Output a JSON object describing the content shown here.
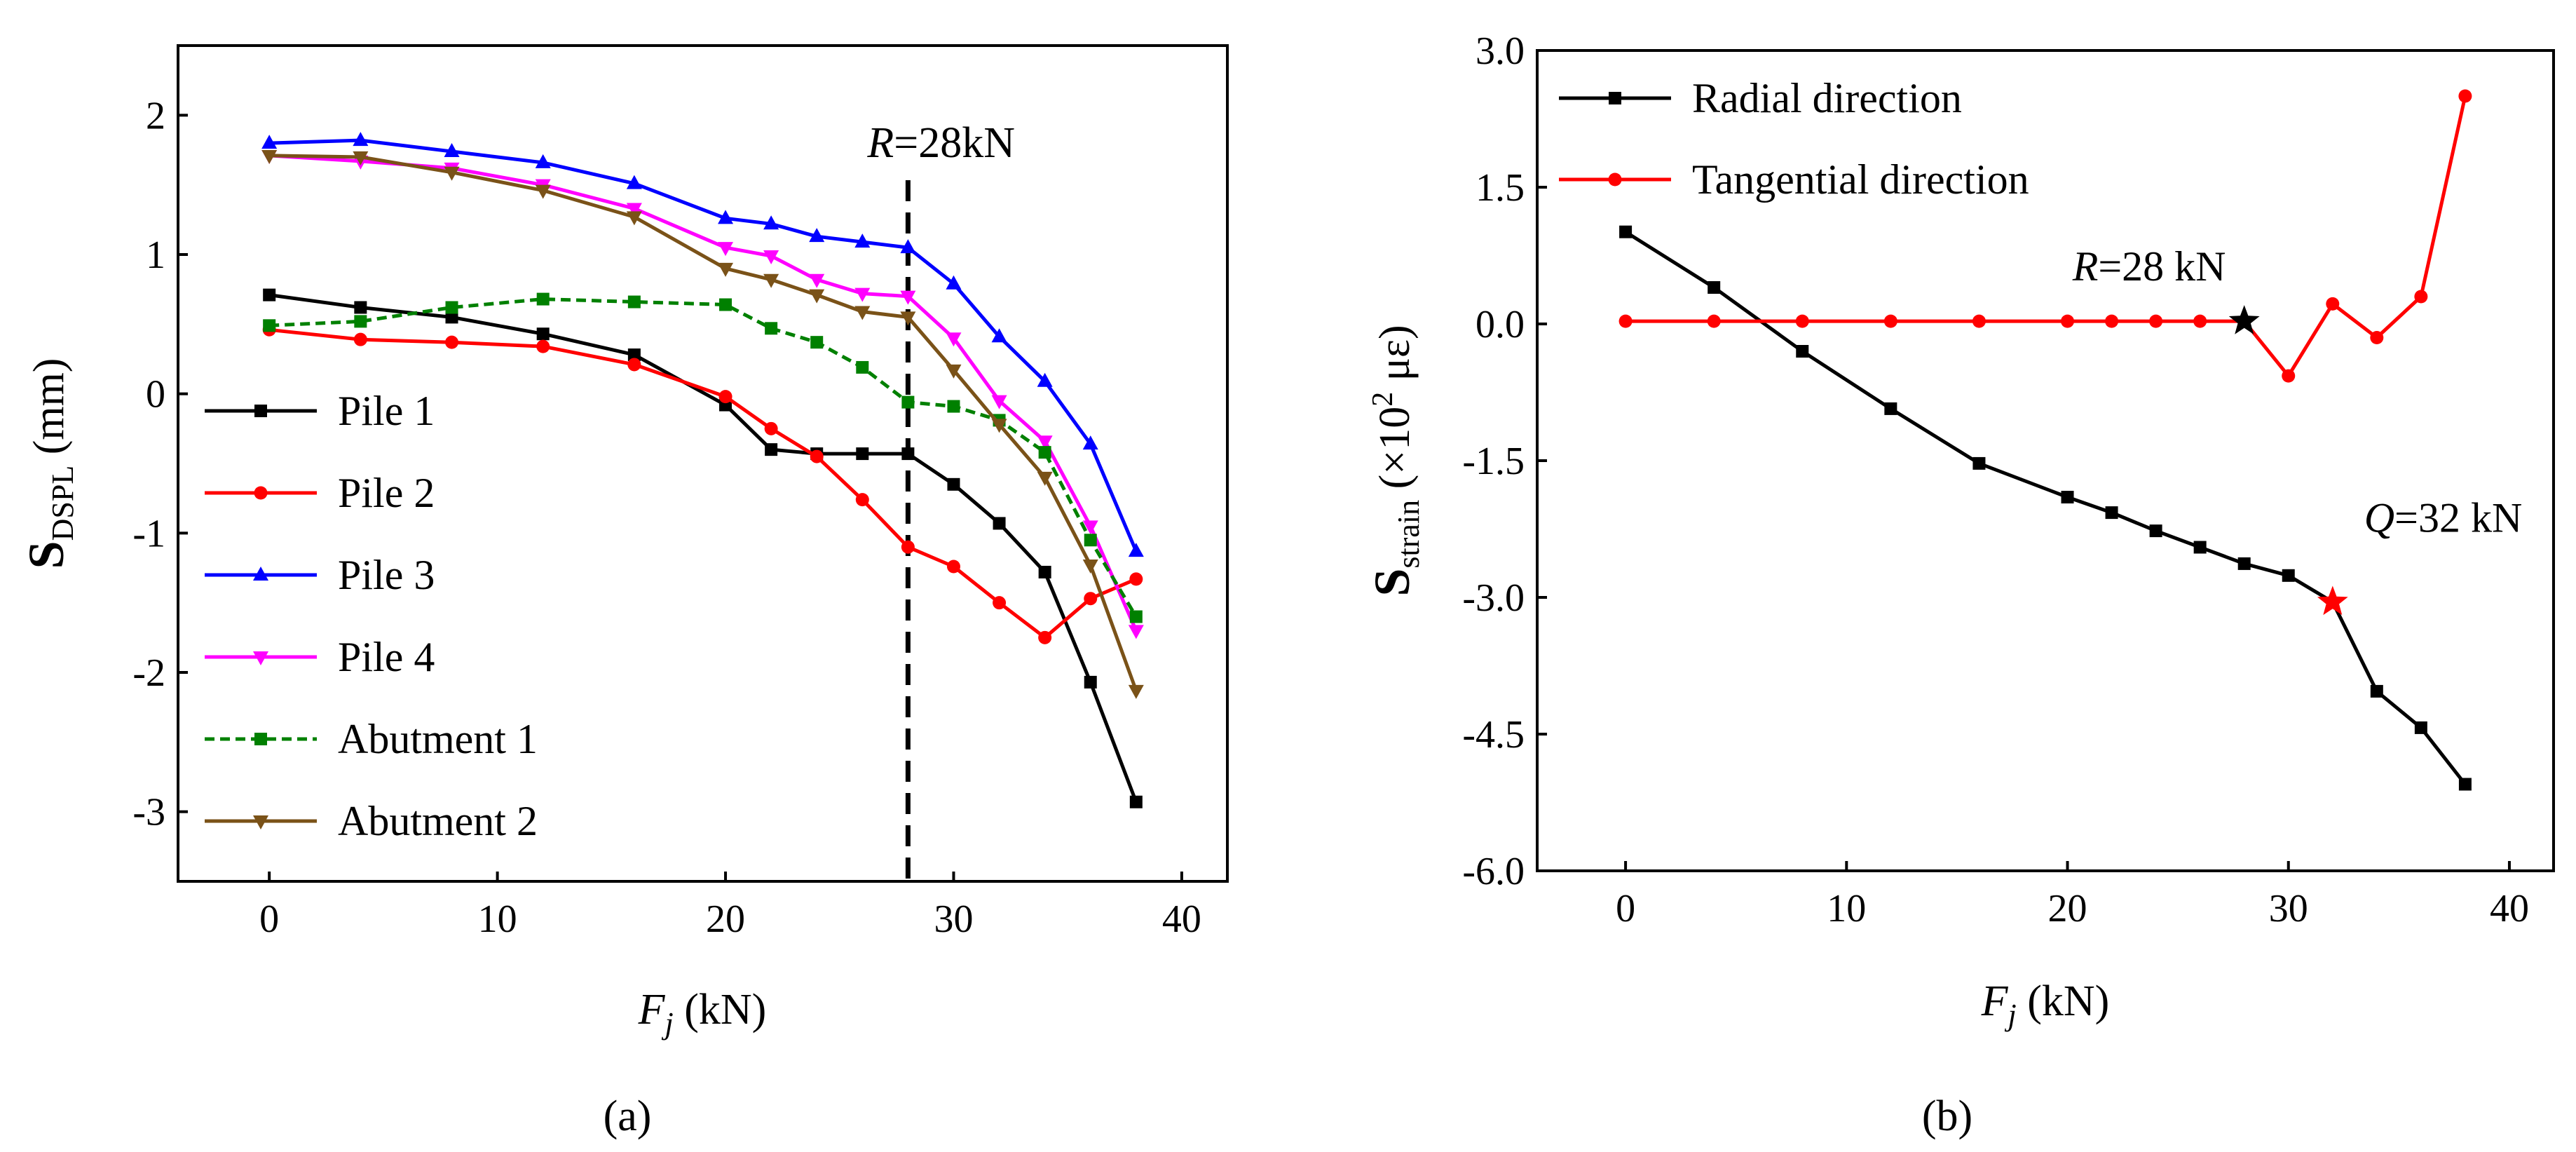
{
  "chart_data": [
    {
      "panel_label": "(a)",
      "type": "line",
      "xlabel": "F_j (kN)",
      "ylabel": "S_DSPL (mm)",
      "xlim": [
        -4,
        42
      ],
      "ylim": [
        -3.5,
        2.5
      ],
      "xticks": [
        0,
        10,
        20,
        30,
        40
      ],
      "yticks": [
        -3,
        -2,
        -1,
        0,
        1,
        2
      ],
      "ytick_labels": [
        "-3",
        "-2",
        "-1",
        "0",
        "1",
        "2"
      ],
      "grid": false,
      "legend_position": "lower-left",
      "vline": {
        "x": 28,
        "label_var": "R",
        "label_rest": "=28kN"
      },
      "series": [
        {
          "name": "Pile 1",
          "color": "#000000",
          "marker": "square",
          "dash": "",
          "x": [
            0,
            4,
            8,
            12,
            16,
            20,
            22,
            24,
            26,
            28,
            30,
            32,
            34,
            36,
            38
          ],
          "y": [
            0.71,
            0.62,
            0.55,
            0.43,
            0.28,
            -0.08,
            -0.4,
            -0.43,
            -0.43,
            -0.43,
            -0.65,
            -0.93,
            -1.28,
            -2.07,
            -2.93
          ]
        },
        {
          "name": "Pile 2",
          "color": "#ff0000",
          "marker": "circle",
          "dash": "",
          "x": [
            0,
            4,
            8,
            12,
            16,
            20,
            22,
            24,
            26,
            28,
            30,
            32,
            34,
            36,
            38
          ],
          "y": [
            0.46,
            0.39,
            0.37,
            0.34,
            0.21,
            -0.02,
            -0.25,
            -0.45,
            -0.76,
            -1.1,
            -1.24,
            -1.5,
            -1.75,
            -1.47,
            -1.33
          ]
        },
        {
          "name": "Pile 3",
          "color": "#0000ff",
          "marker": "triangle-up",
          "dash": "",
          "x": [
            0,
            4,
            8,
            12,
            16,
            20,
            22,
            24,
            26,
            28,
            30,
            32,
            34,
            36,
            38
          ],
          "y": [
            1.8,
            1.82,
            1.74,
            1.66,
            1.51,
            1.26,
            1.22,
            1.13,
            1.09,
            1.05,
            0.79,
            0.41,
            0.09,
            -0.36,
            -1.13
          ]
        },
        {
          "name": "Pile 4",
          "color": "#ff00ff",
          "marker": "triangle-down",
          "dash": "",
          "x": [
            0,
            4,
            8,
            12,
            16,
            20,
            22,
            24,
            26,
            28,
            30,
            32,
            34,
            36,
            38
          ],
          "y": [
            1.71,
            1.67,
            1.62,
            1.5,
            1.33,
            1.05,
            0.99,
            0.82,
            0.72,
            0.7,
            0.4,
            -0.05,
            -0.34,
            -0.95,
            -1.7
          ]
        },
        {
          "name": "Abutment 1",
          "color": "#008000",
          "marker": "square",
          "dash": "14,8",
          "x": [
            0,
            4,
            8,
            12,
            16,
            20,
            22,
            24,
            26,
            28,
            30,
            32,
            34,
            36,
            38
          ],
          "y": [
            0.49,
            0.52,
            0.62,
            0.68,
            0.66,
            0.64,
            0.47,
            0.37,
            0.19,
            -0.06,
            -0.09,
            -0.19,
            -0.42,
            -1.05,
            -1.6
          ]
        },
        {
          "name": "Abutment 2",
          "color": "#7a5218",
          "marker": "triangle-down",
          "dash": "",
          "x": [
            0,
            4,
            8,
            12,
            16,
            20,
            22,
            24,
            26,
            28,
            30,
            32,
            34,
            36,
            38
          ],
          "y": [
            1.71,
            1.7,
            1.59,
            1.46,
            1.27,
            0.9,
            0.82,
            0.71,
            0.59,
            0.55,
            0.17,
            -0.22,
            -0.6,
            -1.23,
            -2.13
          ]
        }
      ]
    },
    {
      "panel_label": "(b)",
      "type": "line",
      "xlabel": "F_j (kN)",
      "ylabel": "S_strain (×10^2 με)",
      "xlim": [
        -4,
        42
      ],
      "ylim": [
        -6.0,
        3.0
      ],
      "xticks": [
        0,
        10,
        20,
        30,
        40
      ],
      "yticks": [
        -6.0,
        -4.5,
        -3.0,
        -1.5,
        0.0,
        1.5,
        3.0
      ],
      "ytick_labels": [
        "-6.0",
        "-4.5",
        "-3.0",
        "-1.5",
        "0.0",
        "1.5",
        "3.0"
      ],
      "grid": false,
      "legend_position": "top-left",
      "series": [
        {
          "name": "Radial direction",
          "color": "#000000",
          "marker": "square",
          "dash": "",
          "x": [
            0,
            4,
            8,
            12,
            16,
            20,
            22,
            24,
            26,
            28,
            30,
            32,
            34,
            36,
            38
          ],
          "y": [
            1.01,
            0.4,
            -0.3,
            -0.93,
            -1.53,
            -1.9,
            -2.07,
            -2.27,
            -2.45,
            -2.63,
            -2.76,
            -3.05,
            -4.03,
            -4.43,
            -5.05
          ]
        },
        {
          "name": "Tangential direction",
          "color": "#ff0000",
          "marker": "circle",
          "dash": "",
          "x": [
            0,
            4,
            8,
            12,
            16,
            20,
            22,
            24,
            26,
            28,
            30,
            32,
            34,
            36,
            38
          ],
          "y": [
            0.03,
            0.03,
            0.03,
            0.03,
            0.03,
            0.03,
            0.03,
            0.03,
            0.03,
            0.03,
            -0.57,
            0.22,
            -0.15,
            0.3,
            2.5
          ]
        }
      ],
      "annotations": [
        {
          "text_var": "R",
          "text_rest": "=28 kN",
          "x": 28,
          "y": 0.03,
          "star_color": "#000000"
        },
        {
          "text_var": "Q",
          "text_rest": "=32 kN",
          "x": 32,
          "y": -3.05,
          "star_color": "#ff0000"
        }
      ]
    }
  ]
}
